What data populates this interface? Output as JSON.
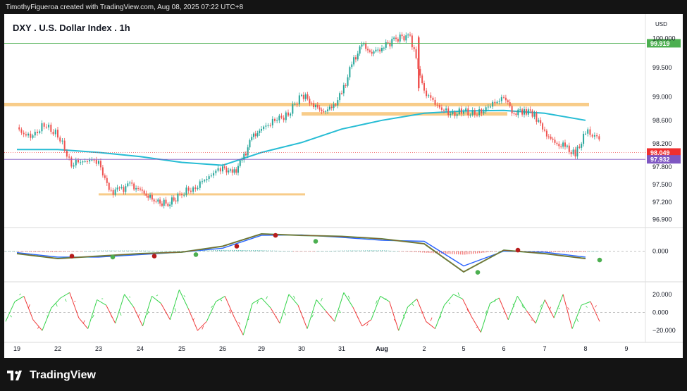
{
  "header": {
    "attribution": "TimothyFigueroa created with TradingView.com, Aug 08, 2025 07:22 UTC+8"
  },
  "footer": {
    "brand": "TradingView",
    "logo_icon": "tradingview-logo-icon"
  },
  "colors": {
    "up": "#26a69a",
    "down": "#ef5350",
    "ma": "#26bcd4",
    "zone": "#f7c67c",
    "resistance_line": "#4caf50",
    "support_line": "#7e57c2",
    "current_price": "#ef2f2f",
    "macd_fast": "#4caf50",
    "macd_slow": "#2962ff",
    "macd_signal_line": "#b71c1c",
    "osc_up": "#34d34a",
    "osc_down": "#ef3b3b"
  },
  "chart_data": {
    "type": "candlestick",
    "title": "DXY . U.S. Dollar Index . 1h",
    "currency": "USD",
    "price_axis": {
      "ticks": [
        "100.000",
        "99.500",
        "99.000",
        "98.600",
        "98.200",
        "97.800",
        "97.500",
        "97.200",
        "96.900"
      ],
      "range": [
        96.8,
        100.25
      ]
    },
    "price_labels": {
      "resistance": "99.919",
      "current": "98.049",
      "support": "97.932"
    },
    "levels": {
      "resistance": 99.919,
      "current": 98.049,
      "support": 97.932
    },
    "time_axis": [
      "19",
      "22",
      "23",
      "24",
      "25",
      "26",
      "29",
      "30",
      "31",
      "Aug",
      "2",
      "5",
      "6",
      "7",
      "8",
      "9"
    ],
    "zones": [
      {
        "from": "19",
        "to": "8",
        "low": 98.84,
        "high": 98.9
      },
      {
        "from": "30",
        "to": "6",
        "low": 98.68,
        "high": 98.74
      },
      {
        "from": "23",
        "to": "30",
        "low": 97.33,
        "high": 97.35
      }
    ],
    "close_path": [
      [
        "19",
        98.45
      ],
      [
        "19",
        98.3
      ],
      [
        "19",
        98.52
      ],
      [
        "22",
        98.35
      ],
      [
        "22",
        97.85
      ],
      [
        "22",
        97.92
      ],
      [
        "23",
        97.9
      ],
      [
        "23",
        97.38
      ],
      [
        "23",
        97.4
      ],
      [
        "23",
        97.5
      ],
      [
        "24",
        97.4
      ],
      [
        "24",
        97.22
      ],
      [
        "24",
        97.16
      ],
      [
        "25",
        97.35
      ],
      [
        "25",
        97.45
      ],
      [
        "25",
        97.65
      ],
      [
        "26",
        97.8
      ],
      [
        "26",
        97.68
      ],
      [
        "26",
        97.9
      ],
      [
        "26",
        98.3
      ],
      [
        "29",
        98.45
      ],
      [
        "29",
        98.6
      ],
      [
        "29",
        98.7
      ],
      [
        "30",
        99.05
      ],
      [
        "30",
        98.9
      ],
      [
        "30",
        98.75
      ],
      [
        "30",
        98.8
      ],
      [
        "31",
        99.05
      ],
      [
        "31",
        99.55
      ],
      [
        "31",
        99.9
      ],
      [
        "31",
        99.75
      ],
      [
        "Aug",
        99.85
      ],
      [
        "Aug",
        100.0
      ],
      [
        "Aug",
        100.05
      ],
      [
        "2",
        99.1
      ],
      [
        "2",
        98.85
      ],
      [
        "2",
        98.7
      ],
      [
        "5",
        98.75
      ],
      [
        "5",
        98.7
      ],
      [
        "5",
        98.85
      ],
      [
        "6",
        99.0
      ],
      [
        "6",
        98.72
      ],
      [
        "6",
        98.78
      ],
      [
        "6",
        98.7
      ],
      [
        "7",
        98.4
      ],
      [
        "7",
        98.2
      ],
      [
        "7",
        98.15
      ],
      [
        "7",
        98.0
      ],
      [
        "8",
        98.4
      ],
      [
        "8",
        98.3
      ],
      [
        "8",
        98.05
      ]
    ],
    "moving_average": [
      [
        "19",
        98.1
      ],
      [
        "22",
        98.1
      ],
      [
        "23",
        98.05
      ],
      [
        "24",
        97.98
      ],
      [
        "25",
        97.88
      ],
      [
        "26",
        97.83
      ],
      [
        "29",
        98.05
      ],
      [
        "30",
        98.22
      ],
      [
        "31",
        98.45
      ],
      [
        "Aug",
        98.6
      ],
      [
        "2",
        98.72
      ],
      [
        "5",
        98.76
      ],
      [
        "6",
        98.77
      ],
      [
        "7",
        98.72
      ],
      [
        "8",
        98.6
      ]
    ],
    "macd": {
      "zero_label": "0.000",
      "range": [
        -0.55,
        0.45
      ],
      "fast": [
        [
          "19",
          -0.05
        ],
        [
          "22",
          -0.15
        ],
        [
          "23",
          -0.1
        ],
        [
          "24",
          -0.05
        ],
        [
          "25",
          -0.02
        ],
        [
          "26",
          0.1
        ],
        [
          "29",
          0.35
        ],
        [
          "30",
          0.32
        ],
        [
          "31",
          0.3
        ],
        [
          "Aug",
          0.25
        ],
        [
          "2",
          0.15
        ],
        [
          "5",
          -0.42
        ],
        [
          "6",
          0.02
        ],
        [
          "7",
          -0.05
        ],
        [
          "8",
          -0.15
        ]
      ],
      "slow": [
        [
          "19",
          -0.03
        ],
        [
          "22",
          -0.12
        ],
        [
          "23",
          -0.12
        ],
        [
          "24",
          -0.07
        ],
        [
          "25",
          -0.02
        ],
        [
          "26",
          0.06
        ],
        [
          "29",
          0.32
        ],
        [
          "30",
          0.33
        ],
        [
          "31",
          0.28
        ],
        [
          "Aug",
          0.22
        ],
        [
          "2",
          0.2
        ],
        [
          "5",
          -0.3
        ],
        [
          "6",
          0.0
        ],
        [
          "7",
          -0.02
        ],
        [
          "8",
          -0.12
        ]
      ],
      "signal_points": [
        [
          "22",
          -0.1,
          "down"
        ],
        [
          "23",
          -0.12,
          "up"
        ],
        [
          "24",
          -0.1,
          "down"
        ],
        [
          "25",
          -0.07,
          "up"
        ],
        [
          "26",
          0.1,
          "down"
        ],
        [
          "29",
          0.32,
          "down"
        ],
        [
          "30",
          0.2,
          "up"
        ],
        [
          "5",
          -0.43,
          "up"
        ],
        [
          "6",
          0.02,
          "down"
        ],
        [
          "8",
          -0.18,
          "up"
        ]
      ]
    },
    "oscillator": {
      "ticks": [
        "20.000",
        "0.000",
        "−20.000"
      ],
      "range": [
        -30,
        30
      ],
      "samples": [
        -10,
        12,
        18,
        -8,
        -20,
        5,
        16,
        22,
        -6,
        -18,
        14,
        8,
        -12,
        20,
        6,
        -15,
        18,
        10,
        -8,
        25,
        4,
        -20,
        -10,
        12,
        18,
        -5,
        -25,
        10,
        16,
        5,
        -12,
        20,
        8,
        -18,
        14,
        2,
        -10,
        22,
        6,
        -15,
        -8,
        18,
        12,
        -20,
        6,
        15,
        -10,
        -18,
        8,
        20,
        15,
        -5,
        -22,
        10,
        16,
        -8,
        18,
        2,
        -12,
        14,
        -6,
        20,
        -18,
        8,
        12,
        -10
      ]
    }
  }
}
